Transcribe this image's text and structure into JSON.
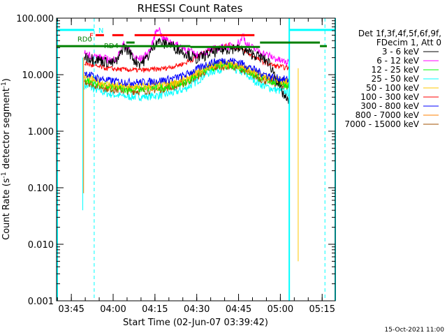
{
  "chart_data": {
    "type": "line",
    "title": "RHESSI Count Rates",
    "xlabel": "Start Time (02-Jun-07 03:39:42)",
    "ylabel": "Count Rate (s⁻¹ detector segment⁻¹)",
    "ylabel_parts": [
      "Count Rate (s",
      "-1",
      " detector segment",
      "-1",
      ")"
    ],
    "yscale": "log",
    "ylim": [
      0.001,
      100
    ],
    "xlim": [
      "03:39:42",
      "05:19:42"
    ],
    "x_unit": "minutes from 03:39:42",
    "xlim_min": [
      0,
      100
    ],
    "x_ticks": [
      {
        "t": 5.3,
        "label": "03:45"
      },
      {
        "t": 20.3,
        "label": "04:00"
      },
      {
        "t": 35.3,
        "label": "04:15"
      },
      {
        "t": 50.3,
        "label": "04:30"
      },
      {
        "t": 65.3,
        "label": "04:45"
      },
      {
        "t": 80.3,
        "label": "05:00"
      },
      {
        "t": 95.3,
        "label": "05:15"
      }
    ],
    "y_ticks": [
      {
        "v": 100,
        "label": "100.000"
      },
      {
        "v": 10,
        "label": "10.000"
      },
      {
        "v": 1,
        "label": "1.000"
      },
      {
        "v": 0.1,
        "label": "0.100"
      },
      {
        "v": 0.01,
        "label": "0.010"
      },
      {
        "v": 0.001,
        "label": "0.001"
      }
    ],
    "legend": {
      "placement": "right",
      "header": [
        "Det 1f,3f,4f,5f,6f,9f,",
        "FDecim 1, Att 0"
      ]
    },
    "series": [
      {
        "name": "3 - 6 keV",
        "color": "#000000",
        "x": [
          10,
          14,
          18,
          20,
          22,
          24,
          26,
          28,
          30,
          32,
          34,
          36,
          38,
          40,
          44,
          48,
          50,
          53,
          56,
          60,
          64,
          68,
          72,
          76,
          78,
          80,
          82,
          83.6
        ],
        "y": [
          21,
          19,
          17,
          16,
          18,
          32,
          26,
          18,
          16,
          19,
          26,
          42,
          35,
          36,
          28,
          22,
          19,
          22,
          25,
          28,
          30,
          26,
          22,
          17,
          11,
          6,
          4,
          3
        ]
      },
      {
        "name": "6 - 12 keV",
        "color": "#ff00ff",
        "x": [
          10,
          14,
          18,
          20,
          22,
          24,
          26,
          28,
          30,
          32,
          34,
          35.5,
          36.5,
          38,
          40,
          44,
          48,
          50,
          53,
          56,
          60,
          64,
          66,
          67,
          68,
          72,
          76,
          80,
          83.6
        ],
        "y": [
          24,
          21,
          19,
          18,
          21,
          35,
          28,
          20,
          19,
          22,
          30,
          55,
          70,
          45,
          40,
          32,
          26,
          22,
          25,
          28,
          31,
          33,
          40,
          52,
          35,
          27,
          22,
          18,
          16
        ]
      },
      {
        "name": "12 - 25 keV",
        "color": "#00ff00",
        "x": [
          10,
          14,
          18,
          22,
          26,
          30,
          34,
          38,
          42,
          46,
          50,
          54,
          58,
          62,
          66,
          70,
          74,
          78,
          83.6
        ],
        "y": [
          8.5,
          7,
          6.2,
          5.8,
          5.6,
          5.6,
          5.8,
          6,
          6.5,
          7.5,
          9.5,
          12.5,
          14.5,
          15,
          13.5,
          10.5,
          8.5,
          7.5,
          6.5
        ]
      },
      {
        "name": "25 - 50 keV",
        "color": "#00ffff",
        "x": [
          10,
          14,
          18,
          22,
          26,
          30,
          34,
          38,
          42,
          46,
          50,
          54,
          58,
          62,
          66,
          70,
          74,
          78,
          83.6
        ],
        "y": [
          6.5,
          5.5,
          4.7,
          4.3,
          4.1,
          4.1,
          4.2,
          4.4,
          4.8,
          5.6,
          7.5,
          10.5,
          12.5,
          13,
          11.5,
          8.5,
          6.5,
          5.5,
          4.8
        ]
      },
      {
        "name": "50 - 100 keV",
        "color": "#ffc800",
        "x": [
          10,
          14,
          18,
          22,
          26,
          30,
          34,
          38,
          42,
          46,
          50,
          54,
          58,
          62,
          66,
          70,
          74,
          78,
          83.6
        ],
        "y": [
          9.5,
          7.8,
          6.8,
          6.4,
          6.2,
          6.2,
          6.4,
          6.7,
          7.2,
          8.3,
          10.5,
          13.5,
          15.5,
          16,
          14.5,
          11.5,
          9.5,
          8.5,
          7.5
        ]
      },
      {
        "name": "100 - 300 keV",
        "color": "#ff0000",
        "x": [
          10,
          14,
          18,
          22,
          26,
          30,
          34,
          38,
          42,
          46,
          50,
          54,
          58,
          62,
          66,
          70,
          74,
          78,
          83.6
        ],
        "y": [
          16,
          14,
          13,
          12.5,
          12.2,
          12,
          12.3,
          12.8,
          14,
          16,
          20,
          26,
          31,
          33,
          29,
          22,
          17,
          14.5,
          13
        ]
      },
      {
        "name": "300 - 800 keV",
        "color": "#0000ff",
        "x": [
          10,
          14,
          18,
          22,
          26,
          30,
          34,
          38,
          42,
          46,
          50,
          54,
          58,
          62,
          66,
          70,
          74,
          78,
          83.6
        ],
        "y": [
          11,
          9,
          8,
          7.6,
          7.4,
          7.4,
          7.6,
          8,
          8.6,
          9.8,
          12.3,
          15.5,
          17.5,
          18,
          16.5,
          13,
          10.5,
          9,
          8
        ]
      },
      {
        "name": "800 - 7000 keV",
        "color": "#ff8000",
        "x": [
          10,
          14,
          18,
          22,
          26,
          30,
          34,
          38,
          42,
          46,
          50,
          54,
          58,
          62,
          66,
          70,
          74,
          78,
          83.6
        ],
        "y": [
          8.5,
          7.1,
          6.3,
          5.9,
          5.7,
          5.7,
          5.9,
          6.2,
          6.7,
          7.7,
          9.8,
          12.8,
          14.8,
          15.3,
          13.8,
          10.8,
          8.8,
          7.8,
          6.8
        ]
      },
      {
        "name": "7000 - 15000 keV",
        "color": "#a05000",
        "x": [
          10,
          14,
          18,
          22,
          26,
          30,
          34,
          38,
          42,
          46,
          50,
          54,
          58,
          62,
          66,
          70,
          74,
          78,
          83.6
        ],
        "y": [
          7.8,
          6.5,
          5.8,
          5.4,
          5.2,
          5.2,
          5.4,
          5.7,
          6.2,
          7.1,
          9.1,
          12,
          14,
          14.5,
          13,
          10,
          8.2,
          7.2,
          6.2
        ]
      }
    ],
    "annotations": {
      "night_label": "N",
      "flare_label": "F",
      "rd0_label": "RD0",
      "rd4_label": "RD4",
      "night_bars": [
        [
          0,
          13.5
        ],
        [
          83.5,
          100
        ]
      ],
      "night_level": 62,
      "flare_bars": [
        [
          14,
          17
        ],
        [
          20,
          24
        ],
        [
          28,
          71
        ]
      ],
      "flare_level": 50,
      "rd0_bars": [
        [
          0,
          48
        ],
        [
          48,
          73
        ],
        [
          73,
          94.5
        ],
        [
          94.5,
          97
        ]
      ],
      "rd0_levels": [
        32,
        37,
        31,
        37,
        31
      ],
      "night_lines": [
        13.5,
        83.5,
        96.3
      ],
      "night_lines_solid": [
        83.5,
        100
      ],
      "edge_drops": [
        {
          "t": 9.4,
          "from": 20,
          "to": 0.04,
          "color": "#00ffff"
        },
        {
          "t": 9.7,
          "from": 20,
          "to": 0.08,
          "color": "#ff8000"
        },
        {
          "t": 86.7,
          "from": 13,
          "to": 0.005,
          "color": "#ffc800"
        }
      ]
    },
    "footer_timestamp": "15-Oct-2021 11:00"
  }
}
